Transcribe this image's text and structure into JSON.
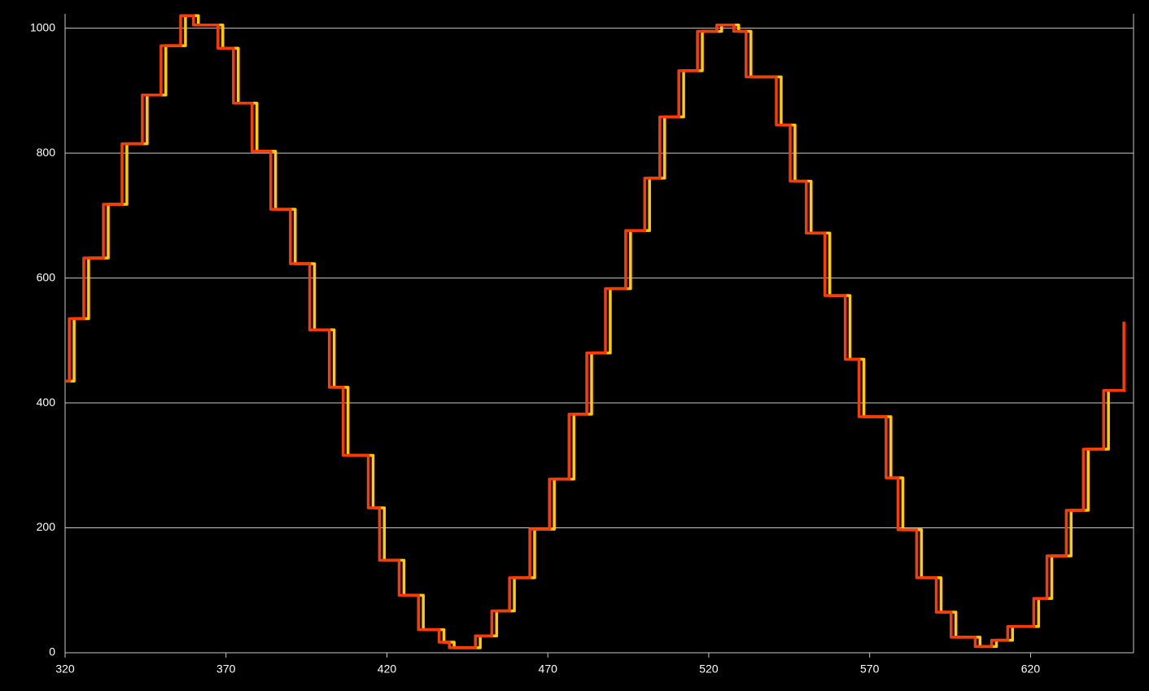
{
  "chart_data": {
    "type": "line",
    "step": "post",
    "xlim": [
      320,
      652
    ],
    "ylim": [
      0,
      1023
    ],
    "xticks": [
      320,
      370,
      420,
      470,
      520,
      570,
      620
    ],
    "yticks": [
      0,
      200,
      400,
      600,
      800,
      1000
    ],
    "grid": true,
    "series": [
      {
        "color": "#ffcc00",
        "x": [
          320,
          322.8,
          327.3,
          333.4,
          339.2,
          345.5,
          351.3,
          357.4,
          361.4,
          369,
          373.8,
          379.6,
          385.4,
          391.5,
          397.5,
          403.6,
          407.9,
          415.7,
          419.2,
          425.3,
          431.3,
          437.7,
          440.9,
          449,
          454.1,
          459.6,
          465.9,
          472,
          478.1,
          483.6,
          489.4,
          495.7,
          501.6,
          506.3,
          512.2,
          518,
          524,
          529.3,
          533.1,
          542.5,
          546.8,
          551.8,
          557.6,
          563.9,
          568.2,
          576.6,
          580.3,
          586.1,
          592.2,
          596.8,
          604.3,
          609.4,
          614.4,
          622.5,
          626.6,
          632.6,
          637.9,
          644.2,
          649.5
        ],
        "values": [
          435,
          535,
          632,
          718,
          815,
          893,
          972,
          1020,
          1005,
          968,
          880,
          803,
          710,
          623,
          517,
          425,
          316,
          232,
          148,
          92,
          37,
          17,
          8,
          27,
          67,
          120,
          198,
          278,
          382,
          480,
          583,
          676,
          760,
          858,
          932,
          995,
          1005,
          995,
          922,
          845,
          755,
          672,
          572,
          470,
          378,
          280,
          197,
          120,
          65,
          25,
          10,
          20,
          42,
          87,
          155,
          228,
          326,
          420,
          420
        ]
      },
      {
        "color": "#ff3a00",
        "x": [
          320,
          321.3,
          325.8,
          331.9,
          337.7,
          344,
          349.8,
          355.9,
          359.9,
          367.5,
          372.3,
          378.1,
          383.9,
          390,
          396,
          402.1,
          406.4,
          414.2,
          417.7,
          423.8,
          429.8,
          436.2,
          439.4,
          447.5,
          452.6,
          458.1,
          464.4,
          470.5,
          476.6,
          482.1,
          487.9,
          494.2,
          500.1,
          504.8,
          510.7,
          516.5,
          522.5,
          527.8,
          531.6,
          541,
          545.3,
          550.3,
          556.1,
          562.4,
          566.7,
          575.1,
          578.8,
          584.6,
          590.7,
          595.3,
          602.8,
          607.9,
          612.9,
          621,
          625.1,
          631.1,
          636.4,
          642.7,
          649
        ],
        "values": [
          435,
          535,
          632,
          718,
          815,
          893,
          972,
          1020,
          1005,
          968,
          880,
          803,
          710,
          623,
          517,
          425,
          316,
          232,
          148,
          92,
          37,
          17,
          8,
          27,
          67,
          120,
          198,
          278,
          382,
          480,
          583,
          676,
          760,
          858,
          932,
          995,
          1005,
          995,
          922,
          845,
          755,
          672,
          572,
          470,
          378,
          280,
          197,
          120,
          65,
          25,
          10,
          20,
          42,
          87,
          155,
          228,
          326,
          420,
          530
        ]
      }
    ]
  }
}
